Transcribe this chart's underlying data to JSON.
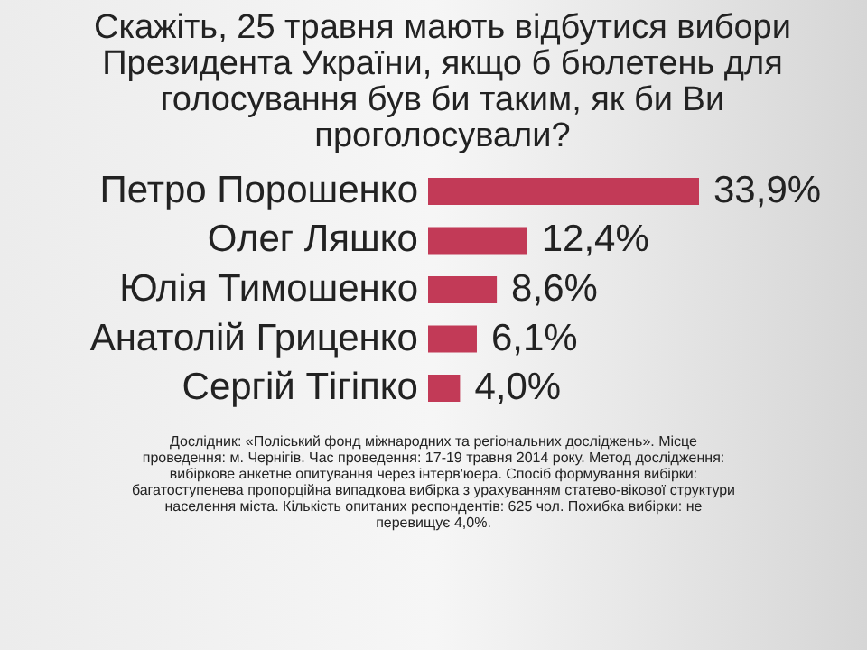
{
  "chart_data": {
    "type": "bar",
    "orientation": "horizontal",
    "title": "Скажіть, 25 травня мають відбутися вибори Президента України, якщо б бюлетень для голосування був би таким, як би Ви проголосували?",
    "categories": [
      "Петро Порошенко",
      "Олег Ляшко",
      "Юлія Тимошенко",
      "Анатолій Гриценко",
      "Сергій Тігіпко"
    ],
    "values": [
      33.9,
      12.4,
      8.6,
      6.1,
      4.0
    ],
    "value_labels": [
      "33,9%",
      "12,4%",
      "8,6%",
      "6,1%",
      "4,0%"
    ],
    "color": "#c23a57",
    "annotations": [
      "Дослідник: «Поліський фонд міжнародних та регіональних досліджень». Місце проведення: м. Чернігів. Час проведення: 17-19 травня 2014 року. Метод дослідження: вибіркове анкетне опитування через інтерв'юера. Спосіб формування вибірки: багатоступенева пропорційна випадкова вибірка з урахуванням статево-вікової структури населення міста. Кількість опитаних респондентів: 625 чол. Похибка вибірки: не перевищує 4,0%."
    ]
  }
}
